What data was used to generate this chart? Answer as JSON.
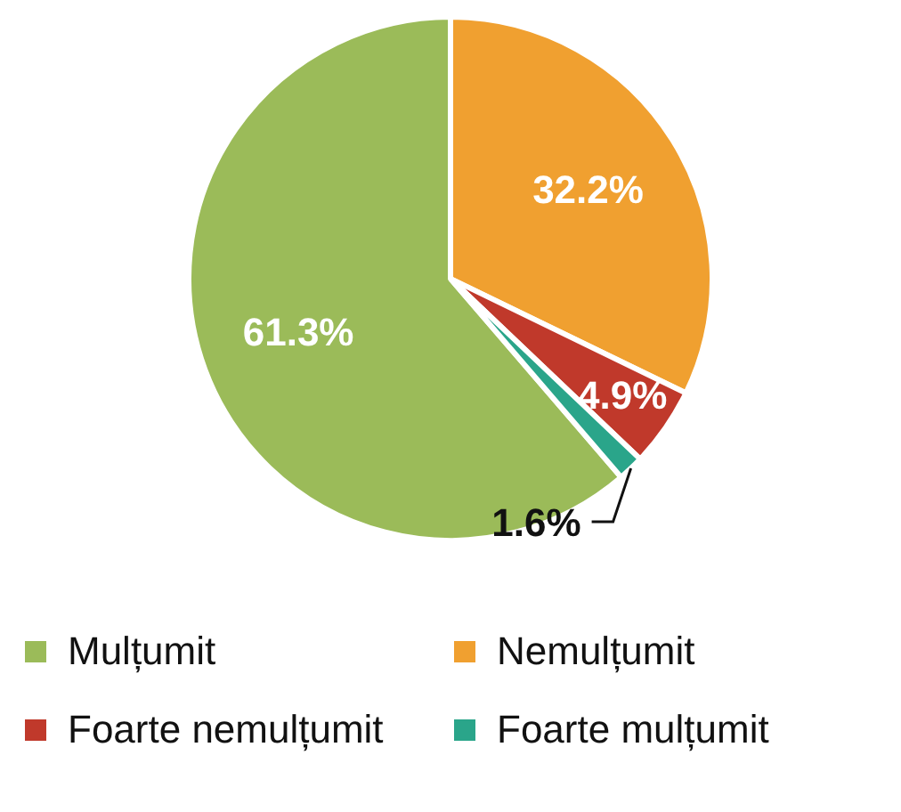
{
  "chart_data": {
    "type": "pie",
    "categories": [
      "Mulțumit",
      "Nemulțumit",
      "Foarte nemulțumit",
      "Foarte mulțumit"
    ],
    "values": [
      61.3,
      32.2,
      4.9,
      1.6
    ],
    "colors": [
      "#9bbb59",
      "#f0a030",
      "#c0392b",
      "#2aa58a"
    ],
    "value_labels": [
      "61.3%",
      "32.2%",
      "4.9%",
      "1.6%"
    ],
    "legend": "bottom"
  }
}
